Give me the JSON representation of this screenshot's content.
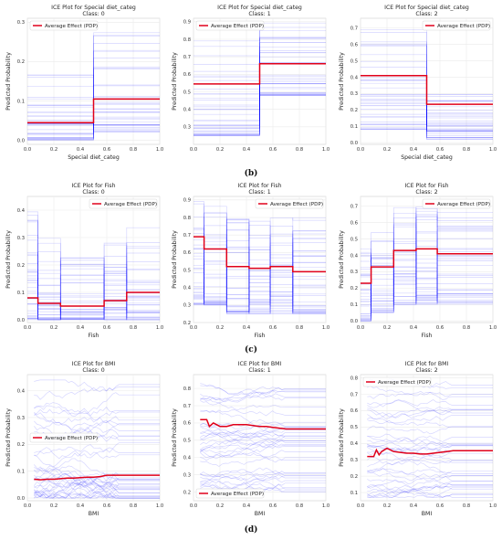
{
  "colors": {
    "ice": "#0000ff",
    "pdp": "#e0001a",
    "grid": "#ebebeb",
    "frame": "#cfcfcf"
  },
  "captions": [
    "(b)",
    "(c)",
    "(d)"
  ],
  "chart_data": [
    {
      "type": "line",
      "title": "ICE Plot for Special diet_categ",
      "subtitle": "Class: 0",
      "xlabel": "Special diet_categ",
      "ylabel": "Predicted Probability",
      "xlim": [
        0,
        1
      ],
      "ylim": [
        -0.01,
        0.31
      ],
      "xticks": [
        "0.0",
        "0.2",
        "0.4",
        "0.6",
        "0.8",
        "1.0"
      ],
      "yticks": [
        "0.0",
        "0.1",
        "0.2",
        "0.3"
      ],
      "legend": "Average Effect (PDP)",
      "legend_loc": "top-left",
      "grid": true,
      "series": [
        {
          "name": "Average Effect (PDP)",
          "x": [
            0,
            0.5,
            0.5,
            1.0
          ],
          "y": [
            0.045,
            0.045,
            0.105,
            0.105
          ]
        }
      ],
      "ice_style": "step",
      "ice_split": [
        0.5
      ],
      "ice_level_range": [
        [
          0.0,
          0.18
        ],
        [
          0.02,
          0.28
        ]
      ]
    },
    {
      "type": "line",
      "title": "ICE Plot for Special diet_categ",
      "subtitle": "Class: 1",
      "xlabel": "",
      "ylabel": "Predicted Probability",
      "xlim": [
        0,
        1
      ],
      "ylim": [
        0.2,
        0.92
      ],
      "xticks": [
        "0.0",
        "0.2",
        "0.4",
        "0.6",
        "0.8",
        "1.0"
      ],
      "yticks": [
        "0.3",
        "0.4",
        "0.5",
        "0.6",
        "0.7",
        "0.8",
        "0.9"
      ],
      "legend": "Average Effect (PDP)",
      "legend_loc": "top-left",
      "grid": true,
      "series": [
        {
          "name": "Average Effect (PDP)",
          "x": [
            0,
            0.5,
            0.5,
            1.0
          ],
          "y": [
            0.545,
            0.545,
            0.66,
            0.66
          ]
        }
      ],
      "ice_style": "step",
      "ice_split": [
        0.5
      ],
      "ice_level_range": [
        [
          0.25,
          0.87
        ],
        [
          0.48,
          0.9
        ]
      ]
    },
    {
      "type": "line",
      "title": "ICE Plot for Special diet_categ",
      "subtitle": "Class: 2",
      "xlabel": "Special diet_categ",
      "ylabel": "Predicted Probability",
      "xlim": [
        0,
        1
      ],
      "ylim": [
        -0.01,
        0.76
      ],
      "xticks": [
        "0.0",
        "0.2",
        "0.4",
        "0.6",
        "0.8",
        "1.0"
      ],
      "yticks": [
        "0.0",
        "0.1",
        "0.2",
        "0.3",
        "0.4",
        "0.5",
        "0.6",
        "0.7"
      ],
      "legend": "Average Effect (PDP)",
      "legend_loc": "top-right",
      "grid": true,
      "series": [
        {
          "name": "Average Effect (PDP)",
          "x": [
            0,
            0.5,
            0.5,
            1.0
          ],
          "y": [
            0.41,
            0.41,
            0.235,
            0.235
          ]
        }
      ],
      "ice_style": "step",
      "ice_split": [
        0.5
      ],
      "ice_level_range": [
        [
          0.08,
          0.72
        ],
        [
          0.02,
          0.3
        ]
      ]
    },
    {
      "type": "line",
      "title": "ICE Plot for Fish",
      "subtitle": "Class: 0",
      "xlabel": "Fish",
      "ylabel": "Predicted Probability",
      "xlim": [
        0,
        1
      ],
      "ylim": [
        -0.01,
        0.45
      ],
      "xticks": [
        "0.0",
        "0.2",
        "0.4",
        "0.6",
        "0.8",
        "1.0"
      ],
      "yticks": [
        "0.0",
        "0.1",
        "0.2",
        "0.3",
        "0.4"
      ],
      "legend": "Average Effect (PDP)",
      "legend_loc": "top-right",
      "grid": true,
      "series": [
        {
          "name": "Average Effect (PDP)",
          "x": [
            0,
            0.08,
            0.08,
            0.25,
            0.25,
            0.58,
            0.58,
            0.75,
            0.75,
            1.0
          ],
          "y": [
            0.08,
            0.08,
            0.06,
            0.06,
            0.05,
            0.05,
            0.07,
            0.07,
            0.1,
            0.1
          ]
        }
      ],
      "ice_style": "step",
      "ice_split": [
        0.08,
        0.25,
        0.58,
        0.75
      ],
      "ice_level_range": [
        [
          0.0,
          0.42
        ],
        [
          0.0,
          0.3
        ],
        [
          0.0,
          0.25
        ],
        [
          0.0,
          0.3
        ],
        [
          0.0,
          0.35
        ]
      ]
    },
    {
      "type": "line",
      "title": "ICE Plot for Fish",
      "subtitle": "Class: 1",
      "xlabel": "Fish",
      "ylabel": "Predicted Probability",
      "xlim": [
        0,
        1
      ],
      "ylim": [
        0.2,
        0.92
      ],
      "xticks": [
        "0.0",
        "0.2",
        "0.4",
        "0.6",
        "0.8",
        "1.0"
      ],
      "yticks": [
        "0.2",
        "0.3",
        "0.4",
        "0.5",
        "0.6",
        "0.7",
        "0.8",
        "0.9"
      ],
      "legend": "Average Effect (PDP)",
      "legend_loc": "top-right",
      "grid": true,
      "series": [
        {
          "name": "Average Effect (PDP)",
          "x": [
            0,
            0.08,
            0.08,
            0.25,
            0.25,
            0.42,
            0.42,
            0.58,
            0.58,
            0.75,
            0.75,
            1.0
          ],
          "y": [
            0.69,
            0.69,
            0.62,
            0.62,
            0.52,
            0.52,
            0.51,
            0.51,
            0.52,
            0.52,
            0.49,
            0.49
          ]
        }
      ],
      "ice_style": "step",
      "ice_split": [
        0.08,
        0.25,
        0.42,
        0.58,
        0.75
      ],
      "ice_level_range": [
        [
          0.3,
          0.9
        ],
        [
          0.3,
          0.88
        ],
        [
          0.25,
          0.82
        ],
        [
          0.25,
          0.8
        ],
        [
          0.25,
          0.82
        ],
        [
          0.25,
          0.8
        ]
      ]
    },
    {
      "type": "line",
      "title": "ICE Plot for Fish",
      "subtitle": "Class: 2",
      "xlabel": "Fish",
      "ylabel": "Predicted Probability",
      "xlim": [
        0,
        1
      ],
      "ylim": [
        -0.01,
        0.76
      ],
      "xticks": [
        "0.0",
        "0.2",
        "0.4",
        "0.6",
        "0.8",
        "1.0"
      ],
      "yticks": [
        "0.0",
        "0.1",
        "0.2",
        "0.3",
        "0.4",
        "0.5",
        "0.6",
        "0.7"
      ],
      "legend": "Average Effect (PDP)",
      "legend_loc": "top-right",
      "grid": true,
      "series": [
        {
          "name": "Average Effect (PDP)",
          "x": [
            0,
            0.08,
            0.08,
            0.25,
            0.25,
            0.42,
            0.42,
            0.58,
            0.58,
            1.0
          ],
          "y": [
            0.23,
            0.23,
            0.33,
            0.33,
            0.43,
            0.43,
            0.44,
            0.44,
            0.41,
            0.41
          ]
        }
      ],
      "ice_style": "step",
      "ice_split": [
        0.08,
        0.25,
        0.42,
        0.58
      ],
      "ice_level_range": [
        [
          0.0,
          0.45
        ],
        [
          0.05,
          0.55
        ],
        [
          0.1,
          0.72
        ],
        [
          0.1,
          0.72
        ],
        [
          0.1,
          0.7
        ]
      ]
    },
    {
      "type": "line",
      "title": "ICE Plot for BMI",
      "subtitle": "Class: 0",
      "xlabel": "BMI",
      "ylabel": "Predicted Probability",
      "xlim": [
        0,
        1
      ],
      "ylim": [
        -0.01,
        0.46
      ],
      "xticks": [
        "0.0",
        "0.2",
        "0.4",
        "0.6",
        "0.8",
        "1.0"
      ],
      "yticks": [
        "0.0",
        "0.1",
        "0.2",
        "0.3",
        "0.4"
      ],
      "legend": "Average Effect (PDP)",
      "legend_loc": "middle-left",
      "grid": true,
      "series": [
        {
          "name": "Average Effect (PDP)",
          "x": [
            0.05,
            0.1,
            0.15,
            0.2,
            0.25,
            0.3,
            0.35,
            0.4,
            0.45,
            0.5,
            0.55,
            0.6,
            0.65,
            0.7,
            0.8,
            0.9,
            1.0
          ],
          "y": [
            0.07,
            0.068,
            0.07,
            0.07,
            0.072,
            0.074,
            0.074,
            0.076,
            0.078,
            0.078,
            0.08,
            0.085,
            0.085,
            0.085,
            0.085,
            0.085,
            0.085
          ]
        }
      ],
      "ice_style": "smooth",
      "ice_level_range": [
        [
          0.0,
          0.44
        ]
      ]
    },
    {
      "type": "line",
      "title": "ICE Plot for BMI",
      "subtitle": "Class: 1",
      "xlabel": "BMI",
      "ylabel": "Predicted Probability",
      "xlim": [
        0,
        1
      ],
      "ylim": [
        0.15,
        0.88
      ],
      "xticks": [
        "0.0",
        "0.2",
        "0.4",
        "0.6",
        "0.8",
        "1.0"
      ],
      "yticks": [
        "0.2",
        "0.3",
        "0.4",
        "0.5",
        "0.6",
        "0.7",
        "0.8"
      ],
      "legend": "Average Effect (PDP)",
      "legend_loc": "bottom-left",
      "grid": true,
      "series": [
        {
          "name": "Average Effect (PDP)",
          "x": [
            0.05,
            0.1,
            0.12,
            0.15,
            0.2,
            0.25,
            0.3,
            0.35,
            0.4,
            0.45,
            0.5,
            0.55,
            0.6,
            0.65,
            0.7,
            0.8,
            0.9,
            1.0
          ],
          "y": [
            0.62,
            0.62,
            0.58,
            0.6,
            0.58,
            0.58,
            0.59,
            0.59,
            0.59,
            0.585,
            0.58,
            0.58,
            0.575,
            0.57,
            0.565,
            0.565,
            0.565,
            0.565
          ]
        }
      ],
      "ice_style": "smooth",
      "ice_level_range": [
        [
          0.2,
          0.86
        ]
      ]
    },
    {
      "type": "line",
      "title": "ICE Plot for BMI",
      "subtitle": "Class: 2",
      "xlabel": "BMI",
      "ylabel": "Predicted Probability",
      "xlim": [
        0,
        1
      ],
      "ylim": [
        0.05,
        0.82
      ],
      "xticks": [
        "0.0",
        "0.2",
        "0.4",
        "0.6",
        "0.8",
        "1.0"
      ],
      "yticks": [
        "0.1",
        "0.2",
        "0.3",
        "0.4",
        "0.5",
        "0.6",
        "0.7",
        "0.8"
      ],
      "legend": "Average Effect (PDP)",
      "legend_loc": "top-left",
      "grid": true,
      "series": [
        {
          "name": "Average Effect (PDP)",
          "x": [
            0.05,
            0.1,
            0.12,
            0.14,
            0.16,
            0.2,
            0.25,
            0.3,
            0.35,
            0.4,
            0.45,
            0.5,
            0.55,
            0.6,
            0.65,
            0.7,
            0.8,
            0.9,
            1.0
          ],
          "y": [
            0.32,
            0.32,
            0.36,
            0.33,
            0.35,
            0.37,
            0.35,
            0.345,
            0.34,
            0.34,
            0.335,
            0.335,
            0.34,
            0.345,
            0.35,
            0.355,
            0.355,
            0.355,
            0.355
          ]
        }
      ],
      "ice_style": "smooth",
      "ice_level_range": [
        [
          0.07,
          0.8
        ]
      ]
    }
  ]
}
